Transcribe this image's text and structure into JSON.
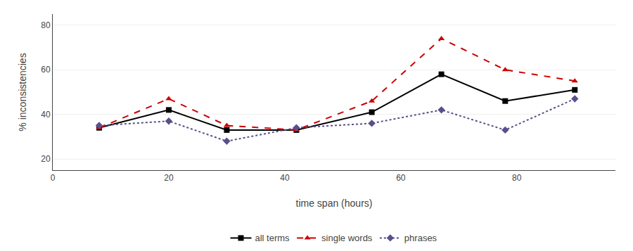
{
  "chart_data": {
    "type": "line",
    "xlabel": "time span (hours)",
    "ylabel": "% inconsistencies",
    "x": [
      8,
      20,
      30,
      42,
      55,
      67,
      78,
      90
    ],
    "series": [
      {
        "name": "all terms",
        "color": "#000000",
        "marker": "square",
        "line_style": "solid",
        "values": [
          34,
          42,
          33,
          33,
          41,
          58,
          46,
          51
        ]
      },
      {
        "name": "single words",
        "color": "#cc0000",
        "marker": "triangle-up",
        "line_style": "dash",
        "values": [
          34,
          47,
          35,
          33,
          46,
          74,
          60,
          55
        ]
      },
      {
        "name": "phrases",
        "color": "#5b4f8a",
        "marker": "diamond",
        "line_style": "dot",
        "values": [
          35,
          37,
          28,
          34,
          36,
          42,
          33,
          47
        ]
      }
    ],
    "xlim": [
      0,
      97
    ],
    "ylim": [
      15,
      85
    ],
    "xticks": [
      0,
      20,
      40,
      60,
      80
    ],
    "yticks": [
      20,
      40,
      60,
      80
    ],
    "grid": "y",
    "legend": "bottom"
  }
}
